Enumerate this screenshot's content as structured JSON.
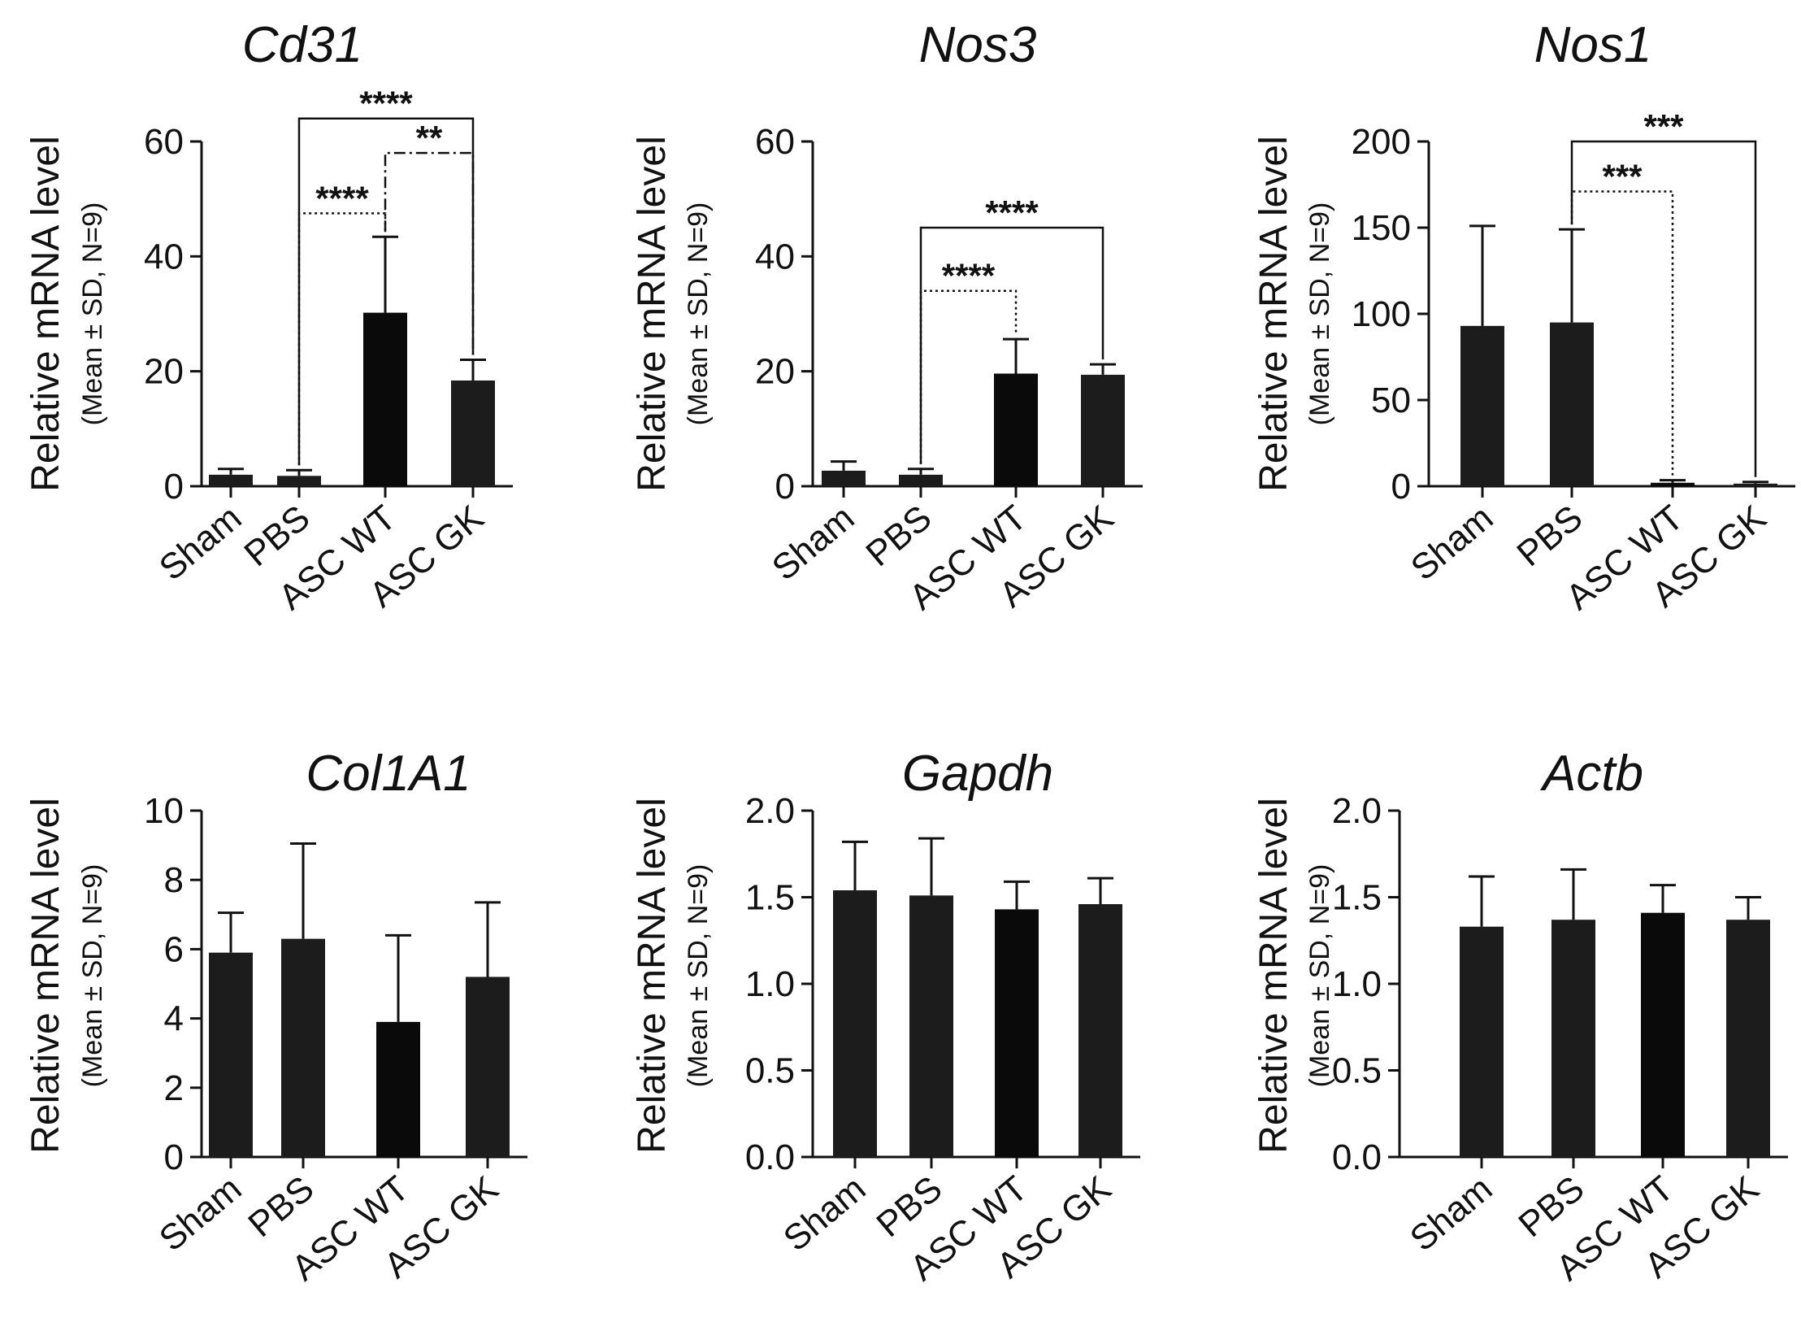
{
  "chart_data": [
    {
      "type": "bar",
      "title": "Cd31",
      "ylabel": "Relative mRNA level",
      "ylabel_sub": "(Mean ± SD, N=9)",
      "categories": [
        "Sham",
        "PBS",
        "ASC WT",
        "ASC GK"
      ],
      "values": [
        2.0,
        1.8,
        30.2,
        18.4
      ],
      "errors": [
        1.0,
        1.0,
        13.2,
        3.6
      ],
      "ylim": [
        0,
        60
      ],
      "yticks": [
        "0",
        "20",
        "40",
        "60"
      ],
      "comparisons": [
        {
          "from": "PBS",
          "to": "ASC GK",
          "label": "****",
          "level": 64,
          "style": "solid"
        },
        {
          "from": "ASC WT",
          "to": "ASC GK",
          "label": "**",
          "level": 58,
          "style": "dashdot"
        },
        {
          "from": "PBS",
          "to": "ASC WT",
          "label": "****",
          "level": 47.5,
          "style": "dotted"
        }
      ]
    },
    {
      "type": "bar",
      "title": "Nos3",
      "ylabel": "Relative mRNA level",
      "ylabel_sub": "(Mean ± SD, N=9)",
      "categories": [
        "Sham",
        "PBS",
        "ASC WT",
        "ASC GK"
      ],
      "values": [
        2.7,
        2.0,
        19.6,
        19.4
      ],
      "errors": [
        1.6,
        1.0,
        6.0,
        1.8
      ],
      "ylim": [
        0,
        60
      ],
      "yticks": [
        "0",
        "20",
        "40",
        "60"
      ],
      "comparisons": [
        {
          "from": "PBS",
          "to": "ASC GK",
          "label": "****",
          "level": 45,
          "style": "solid"
        },
        {
          "from": "PBS",
          "to": "ASC WT",
          "label": "****",
          "level": 34,
          "style": "dotted"
        }
      ]
    },
    {
      "type": "bar",
      "title": "Nos1",
      "ylabel": "Relative mRNA level",
      "ylabel_sub": "(Mean ± SD, N=9)",
      "categories": [
        "Sham",
        "PBS",
        "ASC WT",
        "ASC GK"
      ],
      "values": [
        93,
        95,
        2.0,
        1.5
      ],
      "errors": [
        58,
        54,
        1.5,
        1.0
      ],
      "ylim": [
        0,
        200
      ],
      "yticks": [
        "0",
        "50",
        "100",
        "150",
        "200"
      ],
      "comparisons": [
        {
          "from": "PBS",
          "to": "ASC GK",
          "label": "***",
          "level": 200,
          "style": "solid"
        },
        {
          "from": "PBS",
          "to": "ASC WT",
          "label": "***",
          "level": 171,
          "style": "dotted"
        }
      ]
    },
    {
      "type": "bar",
      "title": "Col1A1",
      "ylabel": "Relative mRNA level",
      "ylabel_sub": "(Mean ± SD, N=9)",
      "categories": [
        "Sham",
        "PBS",
        "ASC WT",
        "ASC GK"
      ],
      "values": [
        5.9,
        6.3,
        3.9,
        5.2
      ],
      "errors": [
        1.15,
        2.75,
        2.5,
        2.15
      ],
      "ylim": [
        0,
        10
      ],
      "yticks": [
        "0",
        "2",
        "4",
        "6",
        "8",
        "10"
      ],
      "comparisons": []
    },
    {
      "type": "bar",
      "title": "Gapdh",
      "ylabel": "Relative mRNA level",
      "ylabel_sub": "(Mean ± SD, N=9)",
      "categories": [
        "Sham",
        "PBS",
        "ASC WT",
        "ASC GK"
      ],
      "values": [
        1.54,
        1.51,
        1.43,
        1.46
      ],
      "errors": [
        0.28,
        0.33,
        0.16,
        0.15
      ],
      "ylim": [
        0,
        2.0
      ],
      "yticks": [
        "0.0",
        "0.5",
        "1.0",
        "1.5",
        "2.0"
      ],
      "comparisons": []
    },
    {
      "type": "bar",
      "title": "Actb",
      "ylabel": "Relative mRNA level",
      "ylabel_sub": "(Mean ± SD, N=9)",
      "categories": [
        "Sham",
        "PBS",
        "ASC WT",
        "ASC GK"
      ],
      "values": [
        1.33,
        1.37,
        1.41,
        1.37
      ],
      "errors": [
        0.29,
        0.29,
        0.16,
        0.13
      ],
      "ylim": [
        0,
        2.0
      ],
      "yticks": [
        "0.0",
        "0.5",
        "1.0",
        "1.5",
        "2.0"
      ],
      "comparisons": []
    }
  ],
  "colors": {
    "bar": "#1c1c1c",
    "bar_alt": "#0a0a0a",
    "axis": "#111111"
  }
}
